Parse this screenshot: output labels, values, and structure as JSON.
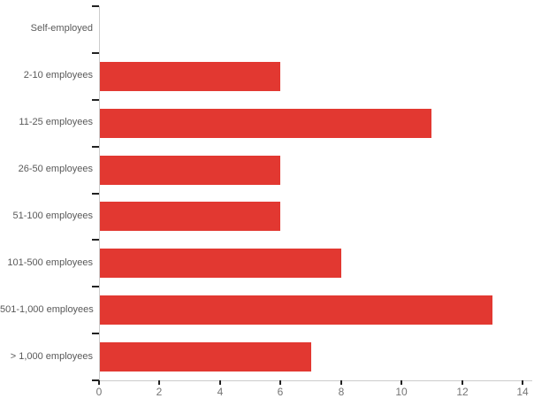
{
  "chart_data": {
    "type": "bar",
    "orientation": "horizontal",
    "title": "",
    "categories": [
      "Self-employed",
      "2-10 employees",
      "11-25 employees",
      "26-50 employees",
      "51-100 employees",
      "101-500 employees",
      "501-1,000 employees",
      "> 1,000 employees"
    ],
    "values": [
      0,
      6,
      11,
      6,
      6,
      8,
      13,
      7
    ],
    "xlabel": "",
    "ylabel": "",
    "xlim": [
      0,
      14
    ],
    "x_ticks": [
      0,
      2,
      4,
      6,
      8,
      10,
      12,
      14
    ],
    "grid": false,
    "legend": false
  },
  "colors": {
    "bar": "#e23831",
    "axis_line": "#cccccc",
    "tick_mark": "#222222",
    "category_label": "#595959",
    "x_tick_label": "#757575",
    "background": "#ffffff"
  }
}
